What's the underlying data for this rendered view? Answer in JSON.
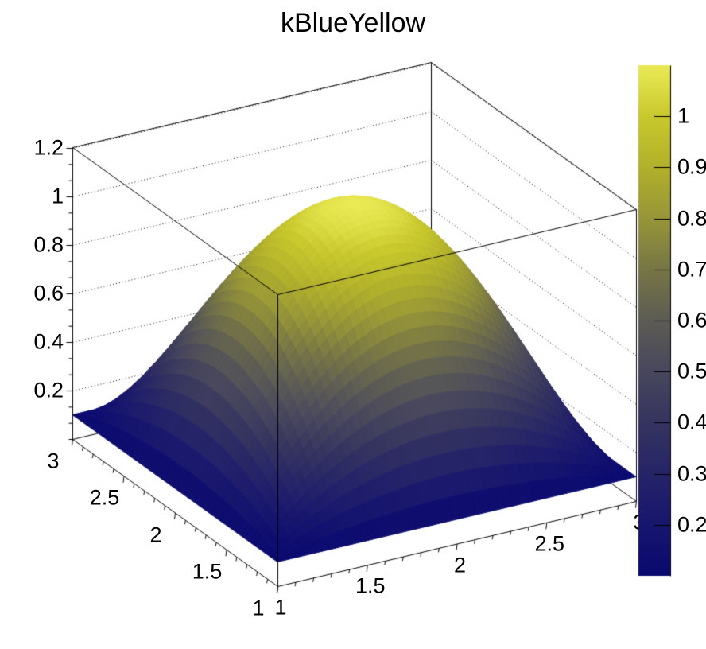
{
  "title": "kBlueYellow",
  "chart_data": {
    "type": "surface3d",
    "title": "kBlueYellow",
    "palette_name": "kBlueYellow",
    "z_formula": "z = 0.1 + (1-(x-2)^2)*(1-(y-2)^2)",
    "x_range": [
      1,
      3
    ],
    "y_range": [
      1,
      3
    ],
    "z_base": 0.1,
    "z_peak": 1.1,
    "peak_center": [
      2,
      2
    ],
    "x_axis": {
      "tick_values": [
        1,
        1.5,
        2,
        2.5,
        3
      ],
      "tick_labels": [
        "1",
        "1.5",
        "2",
        "2.5",
        "3"
      ],
      "minor_step": 0.1
    },
    "y_axis": {
      "tick_values": [
        1,
        1.5,
        2,
        2.5,
        3
      ],
      "tick_labels": [
        "1",
        "1.5",
        "2",
        "2.5",
        "3"
      ],
      "minor_step": 0.1
    },
    "z_axis": {
      "min": 0,
      "max": 1.2033,
      "tick_values": [
        0.2,
        0.4,
        0.6,
        0.8,
        1,
        1.2
      ],
      "tick_labels": [
        "0.2",
        "0.4",
        "0.6",
        "0.8",
        "1",
        "1.2"
      ],
      "minor_divisions": 3,
      "grid_style": "dotted"
    },
    "colorbar": {
      "min": 0.1,
      "max": 1.1,
      "tick_values": [
        0.2,
        0.3,
        0.4,
        0.5,
        0.6,
        0.7,
        0.8,
        0.9,
        1
      ],
      "tick_labels": [
        "0.2",
        "0.3",
        "0.4",
        "0.5",
        "0.6",
        "0.7",
        "0.8",
        "0.9",
        "1"
      ]
    },
    "palette_stops": [
      {
        "t": 0.0,
        "color": "#0a0970"
      },
      {
        "t": 0.1,
        "color": "#17166e"
      },
      {
        "t": 0.2,
        "color": "#262468"
      },
      {
        "t": 0.3,
        "color": "#35345f"
      },
      {
        "t": 0.4,
        "color": "#48475d"
      },
      {
        "t": 0.5,
        "color": "#5d5c54"
      },
      {
        "t": 0.6,
        "color": "#777645"
      },
      {
        "t": 0.7,
        "color": "#979638"
      },
      {
        "t": 0.8,
        "color": "#b2b12b"
      },
      {
        "t": 0.9,
        "color": "#c9c92d"
      },
      {
        "t": 1.0,
        "color": "#eaea55"
      }
    ],
    "sample_grid": {
      "x": [
        1,
        1.5,
        2,
        2.5,
        3
      ],
      "y": [
        1,
        1.5,
        2,
        2.5,
        3
      ],
      "z": [
        [
          0.1,
          0.1,
          0.1,
          0.1,
          0.1
        ],
        [
          0.1,
          0.6625,
          0.85,
          0.6625,
          0.1
        ],
        [
          0.1,
          0.85,
          1.1,
          0.85,
          0.1
        ],
        [
          0.1,
          0.6625,
          0.85,
          0.6625,
          0.1
        ],
        [
          0.1,
          0.1,
          0.1,
          0.1,
          0.1
        ]
      ]
    }
  }
}
